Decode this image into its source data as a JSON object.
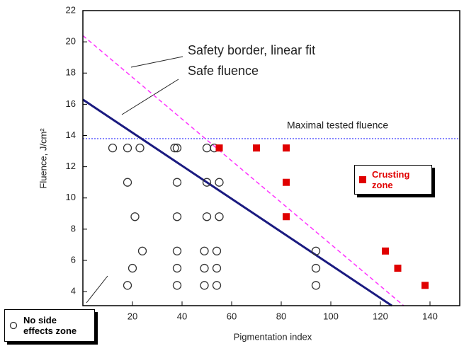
{
  "chart_data": {
    "type": "scatter",
    "x_label": "Pigmentation index",
    "y_label": "Fluence, J/cm²",
    "xlim": [
      0,
      152
    ],
    "ylim": [
      3.1,
      22
    ],
    "xticks": [
      20,
      40,
      60,
      80,
      100,
      120,
      140
    ],
    "yticks": [
      4,
      6,
      8,
      10,
      12,
      14,
      16,
      18,
      20,
      22
    ],
    "grid": false,
    "series": [
      {
        "name": "No side effects zone",
        "marker": "circle",
        "color": "#333333",
        "x": [
          12,
          18,
          23,
          37,
          38,
          50,
          53,
          18,
          38,
          50,
          55,
          21,
          38,
          50,
          55,
          24,
          38,
          49,
          54,
          94,
          20,
          38,
          49,
          54,
          94,
          18,
          38,
          49,
          54,
          94
        ],
        "values": [
          13.2,
          13.2,
          13.2,
          13.2,
          13.2,
          13.2,
          13.2,
          11,
          11,
          11,
          11,
          8.8,
          8.8,
          8.8,
          8.8,
          6.6,
          6.6,
          6.6,
          6.6,
          6.6,
          5.5,
          5.5,
          5.5,
          5.5,
          5.5,
          4.4,
          4.4,
          4.4,
          4.4,
          4.4
        ]
      },
      {
        "name": "Crusting zone",
        "marker": "square",
        "color": "#e00000",
        "x": [
          55,
          70,
          82,
          82,
          82,
          122,
          127,
          138
        ],
        "values": [
          13.2,
          13.2,
          13.2,
          11,
          8.8,
          6.6,
          5.5,
          4.4
        ]
      }
    ],
    "lines": [
      {
        "name": "Safety border, linear fit",
        "color": "#ff33ff",
        "dash": true,
        "x": [
          0,
          129.4
        ],
        "values": [
          20.4,
          3.1
        ]
      },
      {
        "name": "Safe fluence",
        "color": "#1a1a80",
        "dash": false,
        "x": [
          0,
          124.6
        ],
        "values": [
          16.3,
          3.1
        ]
      }
    ],
    "hline": {
      "name": "Maximal tested fluence",
      "color": "#3333ff",
      "value": 13.8
    }
  }
}
